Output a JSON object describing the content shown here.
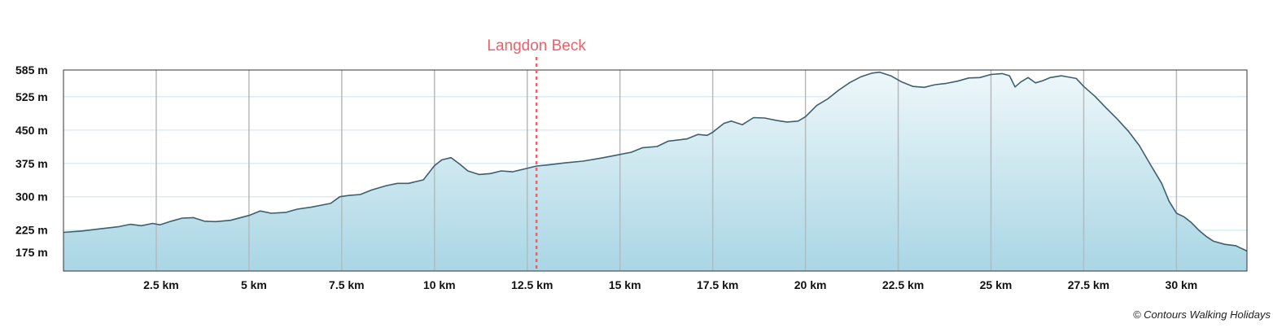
{
  "chart_data": {
    "type": "area",
    "title": "",
    "xlabel": "",
    "ylabel": "",
    "x_unit": "km",
    "y_unit": "m",
    "xlim": [
      0,
      31.9
    ],
    "ylim": [
      133,
      585
    ],
    "x_ticks": [
      {
        "value": 2.5,
        "label": "2.5 km"
      },
      {
        "value": 5,
        "label": "5 km"
      },
      {
        "value": 7.5,
        "label": "7.5 km"
      },
      {
        "value": 10,
        "label": "10 km"
      },
      {
        "value": 12.5,
        "label": "12.5 km"
      },
      {
        "value": 15,
        "label": "15 km"
      },
      {
        "value": 17.5,
        "label": "17.5 km"
      },
      {
        "value": 20,
        "label": "20 km"
      },
      {
        "value": 22.5,
        "label": "22.5 km"
      },
      {
        "value": 25,
        "label": "25 km"
      },
      {
        "value": 27.5,
        "label": "27.5 km"
      },
      {
        "value": 30,
        "label": "30 km"
      }
    ],
    "y_ticks": [
      {
        "value": 175,
        "label": "175 m"
      },
      {
        "value": 225,
        "label": "225 m"
      },
      {
        "value": 300,
        "label": "300 m"
      },
      {
        "value": 375,
        "label": "375 m"
      },
      {
        "value": 450,
        "label": "450 m"
      },
      {
        "value": 525,
        "label": "525 m"
      },
      {
        "value": 585,
        "label": "585 m"
      }
    ],
    "grid": true,
    "markers": [
      {
        "x": 12.75,
        "label": "Langdon Beck"
      }
    ],
    "series": [
      {
        "line_color": "#3d5f6e",
        "fill_top_color": "#eef7fa",
        "fill_bottom_color": "#a9d6e5",
        "points": [
          [
            0,
            220
          ],
          [
            0.5,
            223
          ],
          [
            1.0,
            228
          ],
          [
            1.5,
            233
          ],
          [
            1.8,
            238
          ],
          [
            2.1,
            235
          ],
          [
            2.4,
            240
          ],
          [
            2.6,
            237
          ],
          [
            2.9,
            245
          ],
          [
            3.2,
            252
          ],
          [
            3.5,
            253
          ],
          [
            3.8,
            245
          ],
          [
            4.1,
            244
          ],
          [
            4.5,
            247
          ],
          [
            5.0,
            258
          ],
          [
            5.3,
            268
          ],
          [
            5.6,
            263
          ],
          [
            6.0,
            265
          ],
          [
            6.3,
            272
          ],
          [
            6.7,
            277
          ],
          [
            7.2,
            285
          ],
          [
            7.45,
            300
          ],
          [
            7.7,
            303
          ],
          [
            8.0,
            305
          ],
          [
            8.3,
            315
          ],
          [
            8.7,
            325
          ],
          [
            9.0,
            330
          ],
          [
            9.3,
            330
          ],
          [
            9.7,
            338
          ],
          [
            10.0,
            370
          ],
          [
            10.2,
            383
          ],
          [
            10.45,
            388
          ],
          [
            10.7,
            372
          ],
          [
            10.9,
            358
          ],
          [
            11.2,
            350
          ],
          [
            11.5,
            352
          ],
          [
            11.8,
            358
          ],
          [
            12.1,
            356
          ],
          [
            12.4,
            362
          ],
          [
            12.75,
            369
          ],
          [
            13.1,
            372
          ],
          [
            13.5,
            376
          ],
          [
            14.0,
            380
          ],
          [
            14.5,
            387
          ],
          [
            15.0,
            395
          ],
          [
            15.3,
            400
          ],
          [
            15.6,
            410
          ],
          [
            16.0,
            413
          ],
          [
            16.3,
            425
          ],
          [
            16.8,
            430
          ],
          [
            17.1,
            440
          ],
          [
            17.35,
            438
          ],
          [
            17.5,
            445
          ],
          [
            17.8,
            465
          ],
          [
            18.0,
            470
          ],
          [
            18.3,
            462
          ],
          [
            18.6,
            478
          ],
          [
            18.9,
            477
          ],
          [
            19.2,
            472
          ],
          [
            19.5,
            468
          ],
          [
            19.8,
            470
          ],
          [
            20.0,
            480
          ],
          [
            20.3,
            505
          ],
          [
            20.6,
            520
          ],
          [
            20.9,
            540
          ],
          [
            21.2,
            557
          ],
          [
            21.5,
            570
          ],
          [
            21.8,
            578
          ],
          [
            22.0,
            580
          ],
          [
            22.3,
            572
          ],
          [
            22.6,
            558
          ],
          [
            22.9,
            548
          ],
          [
            23.2,
            546
          ],
          [
            23.5,
            552
          ],
          [
            23.8,
            555
          ],
          [
            24.1,
            560
          ],
          [
            24.4,
            567
          ],
          [
            24.7,
            568
          ],
          [
            25.0,
            575
          ],
          [
            25.3,
            577
          ],
          [
            25.5,
            572
          ],
          [
            25.65,
            547
          ],
          [
            25.8,
            558
          ],
          [
            26.0,
            568
          ],
          [
            26.2,
            556
          ],
          [
            26.4,
            561
          ],
          [
            26.6,
            568
          ],
          [
            26.9,
            572
          ],
          [
            27.3,
            566
          ],
          [
            27.5,
            548
          ],
          [
            27.8,
            526
          ],
          [
            28.1,
            500
          ],
          [
            28.4,
            475
          ],
          [
            28.7,
            448
          ],
          [
            29.0,
            415
          ],
          [
            29.3,
            372
          ],
          [
            29.6,
            330
          ],
          [
            29.8,
            290
          ],
          [
            30.0,
            263
          ],
          [
            30.2,
            255
          ],
          [
            30.4,
            242
          ],
          [
            30.6,
            225
          ],
          [
            30.8,
            211
          ],
          [
            31.0,
            200
          ],
          [
            31.3,
            193
          ],
          [
            31.6,
            190
          ],
          [
            31.9,
            178
          ]
        ]
      }
    ]
  },
  "credit": "© Contours Walking Holidays"
}
